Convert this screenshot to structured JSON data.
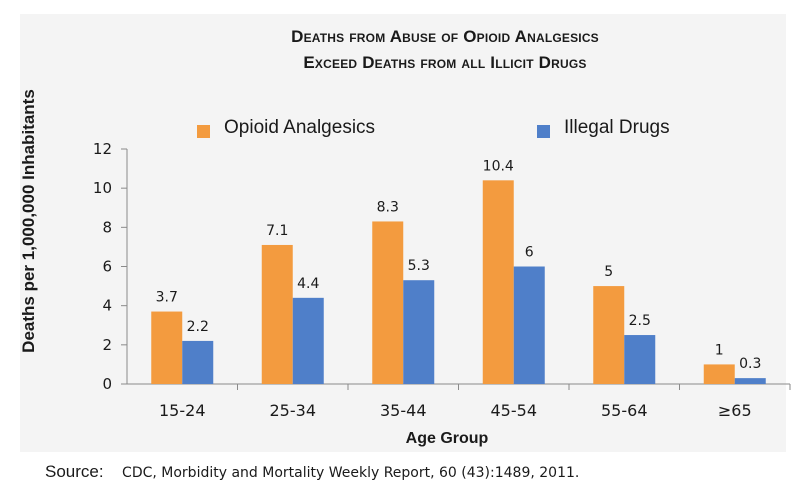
{
  "chart_data": {
    "type": "bar",
    "title_lines": [
      "Deaths from Abuse of Opioid Analgesics",
      "Exceed Deaths from all Illicit Drugs"
    ],
    "xlabel": "Age Group",
    "ylabel": "Deaths per 1,000,000 Inhabitants",
    "categories": [
      "15-24",
      "25-34",
      "35-44",
      "45-54",
      "55-64",
      "≥65"
    ],
    "series": [
      {
        "name": "Opioid Analgesics",
        "color": "#f39b3f",
        "values": [
          3.7,
          7.1,
          8.3,
          10.4,
          5,
          1
        ],
        "value_labels": [
          "3.7",
          "7.1",
          "8.3",
          "10.4",
          "5",
          "1"
        ]
      },
      {
        "name": "Illegal Drugs",
        "color": "#4f7fc9",
        "values": [
          2.2,
          4.4,
          5.3,
          6,
          2.5,
          0.3
        ],
        "value_labels": [
          "2.2",
          "4.4",
          "5.3",
          "6",
          "2.5",
          "0.3"
        ]
      }
    ],
    "ylim": [
      0,
      12
    ],
    "yticks": [
      0,
      2,
      4,
      6,
      8,
      10,
      12
    ],
    "ytick_labels": [
      "0",
      "2",
      "4",
      "6",
      "8",
      "10",
      "12"
    ],
    "grid": false,
    "legend_position": "top"
  },
  "source": {
    "label": "Source:",
    "text": "CDC, Morbidity and Mortality Weekly Report, 60 (43):1489, 2011."
  }
}
